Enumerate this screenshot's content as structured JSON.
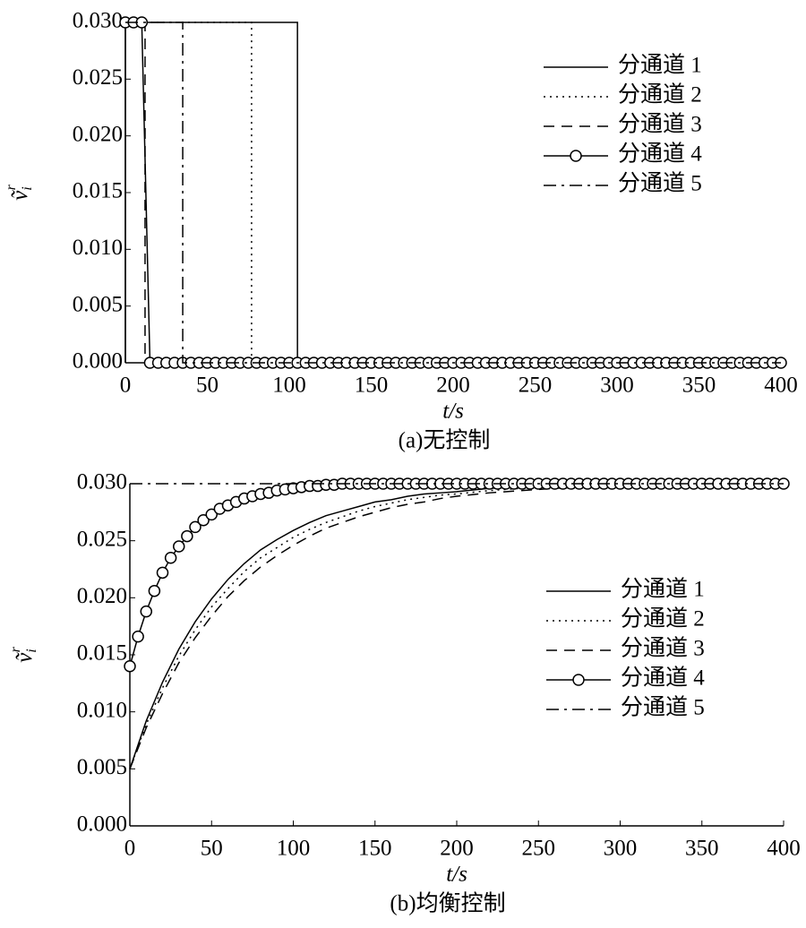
{
  "chart_data": [
    {
      "type": "line",
      "caption": "(a)无控制",
      "xlabel": "t/s",
      "ylabel": "ṽ",
      "ylabel_sub": "i",
      "ylabel_sup": "r",
      "xlim": [
        0,
        400
      ],
      "ylim": [
        0,
        0.03
      ],
      "xticks": [
        0,
        50,
        100,
        150,
        200,
        250,
        300,
        350,
        400
      ],
      "yticks": [
        {
          "value": 0,
          "label": "0.000"
        },
        0.005,
        {
          "value": 0.01,
          "label": "0.010"
        },
        0.015,
        {
          "value": 0.02,
          "label": "0.020"
        },
        0.025,
        {
          "value": 0.03,
          "label": "0.030"
        }
      ],
      "legend": "upper right",
      "series": [
        {
          "name": "分通道 1",
          "color": "#000000",
          "style": "solid",
          "x": [
            0,
            0,
            105,
            105,
            400
          ],
          "values": [
            0,
            0.03,
            0.03,
            0,
            0
          ]
        },
        {
          "name": "分通道 2",
          "color": "#000000",
          "style": "dotted",
          "x": [
            0,
            77,
            77,
            400
          ],
          "values": [
            0.03,
            0.03,
            0,
            0
          ]
        },
        {
          "name": "分通道 3",
          "color": "#000000",
          "style": "dashed",
          "x": [
            0,
            12,
            12,
            400
          ],
          "values": [
            0.03,
            0.03,
            0,
            0
          ]
        },
        {
          "name": "分通道 4",
          "color": "#000000",
          "style": "circle",
          "x": [
            0,
            5,
            10,
            15,
            20,
            25,
            30,
            35,
            40,
            45,
            50,
            55,
            60,
            65,
            70,
            75,
            80,
            85,
            90,
            95,
            100,
            105,
            110,
            115,
            120,
            125,
            130,
            135,
            140,
            145,
            150,
            155,
            160,
            165,
            170,
            175,
            180,
            185,
            190,
            195,
            200,
            205,
            210,
            215,
            220,
            225,
            230,
            235,
            240,
            245,
            250,
            255,
            260,
            265,
            270,
            275,
            280,
            285,
            290,
            295,
            300,
            305,
            310,
            315,
            320,
            325,
            330,
            335,
            340,
            345,
            350,
            355,
            360,
            365,
            370,
            375,
            380,
            385,
            390,
            395,
            400
          ],
          "values": [
            0.03,
            0.03,
            0.03,
            0,
            0,
            0,
            0,
            0,
            0,
            0,
            0,
            0,
            0,
            0,
            0,
            0,
            0,
            0,
            0,
            0,
            0,
            0,
            0,
            0,
            0,
            0,
            0,
            0,
            0,
            0,
            0,
            0,
            0,
            0,
            0,
            0,
            0,
            0,
            0,
            0,
            0,
            0,
            0,
            0,
            0,
            0,
            0,
            0,
            0,
            0,
            0,
            0,
            0,
            0,
            0,
            0,
            0,
            0,
            0,
            0,
            0,
            0,
            0,
            0,
            0,
            0,
            0,
            0,
            0,
            0,
            0,
            0,
            0,
            0,
            0,
            0,
            0,
            0,
            0,
            0,
            0
          ]
        },
        {
          "name": "分通道 5",
          "color": "#000000",
          "style": "dashdot",
          "x": [
            0,
            35,
            35,
            400
          ],
          "values": [
            0.03,
            0.03,
            0,
            0
          ]
        }
      ]
    },
    {
      "type": "line",
      "caption": "(b)均衡控制",
      "xlabel": "t/s",
      "ylabel": "ṽ",
      "ylabel_sub": "i",
      "ylabel_sup": "r",
      "xlim": [
        0,
        400
      ],
      "ylim": [
        0,
        0.03
      ],
      "xticks": [
        0,
        50,
        100,
        150,
        200,
        250,
        300,
        350,
        400
      ],
      "yticks": [
        {
          "value": 0,
          "label": "0.000"
        },
        0.005,
        {
          "value": 0.01,
          "label": "0.010"
        },
        0.015,
        {
          "value": 0.02,
          "label": "0.020"
        },
        0.025,
        {
          "value": 0.03,
          "label": "0.030"
        }
      ],
      "legend": "center right",
      "series": [
        {
          "name": "分通道 1",
          "color": "#000000",
          "style": "solid",
          "x": [
            0,
            10,
            20,
            30,
            40,
            50,
            60,
            70,
            80,
            90,
            100,
            110,
            120,
            130,
            140,
            150,
            160,
            170,
            180,
            190,
            200,
            220,
            240,
            260,
            280,
            300,
            320,
            340,
            360,
            380,
            400
          ],
          "values": [
            0.005,
            0.0092,
            0.0126,
            0.0155,
            0.0179,
            0.0199,
            0.0216,
            0.023,
            0.0242,
            0.0251,
            0.0259,
            0.0266,
            0.0272,
            0.0276,
            0.028,
            0.0284,
            0.0286,
            0.0289,
            0.0291,
            0.0292,
            0.0293,
            0.0296,
            0.0297,
            0.0298,
            0.0299,
            0.0299,
            0.03,
            0.03,
            0.03,
            0.03,
            0.03
          ]
        },
        {
          "name": "分通道 2",
          "color": "#000000",
          "style": "dotted",
          "x": [
            0,
            10,
            20,
            30,
            40,
            50,
            60,
            70,
            80,
            90,
            100,
            110,
            120,
            130,
            140,
            150,
            160,
            170,
            180,
            190,
            200,
            220,
            240,
            260,
            280,
            300,
            320,
            340,
            360,
            380,
            400
          ],
          "values": [
            0.005,
            0.0089,
            0.0121,
            0.0149,
            0.0172,
            0.0192,
            0.0208,
            0.0223,
            0.0235,
            0.0244,
            0.0253,
            0.026,
            0.0266,
            0.0271,
            0.0276,
            0.028,
            0.0283,
            0.0286,
            0.0288,
            0.029,
            0.0291,
            0.0294,
            0.0296,
            0.0297,
            0.0298,
            0.0299,
            0.03,
            0.03,
            0.03,
            0.03,
            0.03
          ]
        },
        {
          "name": "分通道 3",
          "color": "#000000",
          "style": "dashed",
          "x": [
            0,
            10,
            20,
            30,
            40,
            50,
            60,
            70,
            80,
            90,
            100,
            110,
            120,
            130,
            140,
            150,
            160,
            170,
            180,
            190,
            200,
            220,
            240,
            260,
            280,
            300,
            320,
            340,
            360,
            380,
            400
          ],
          "values": [
            0.005,
            0.0086,
            0.0116,
            0.0143,
            0.0165,
            0.0184,
            0.0201,
            0.0215,
            0.0227,
            0.0237,
            0.0246,
            0.0254,
            0.0261,
            0.0266,
            0.0271,
            0.0275,
            0.0279,
            0.0282,
            0.0284,
            0.0287,
            0.0289,
            0.0292,
            0.0294,
            0.0296,
            0.0297,
            0.0298,
            0.0299,
            0.0299,
            0.03,
            0.03,
            0.03
          ]
        },
        {
          "name": "分通道 4",
          "color": "#000000",
          "style": "circle",
          "x": [
            0,
            5,
            10,
            15,
            20,
            25,
            30,
            35,
            40,
            45,
            50,
            55,
            60,
            65,
            70,
            75,
            80,
            85,
            90,
            95,
            100,
            105,
            110,
            115,
            120,
            125,
            130,
            135,
            140,
            145,
            150,
            155,
            160,
            165,
            170,
            175,
            180,
            185,
            190,
            195,
            200,
            205,
            210,
            215,
            220,
            225,
            230,
            235,
            240,
            245,
            250,
            255,
            260,
            265,
            270,
            275,
            280,
            285,
            290,
            295,
            300,
            305,
            310,
            315,
            320,
            325,
            330,
            335,
            340,
            345,
            350,
            355,
            360,
            365,
            370,
            375,
            380,
            385,
            390,
            395,
            400
          ],
          "values": [
            0.014,
            0.0166,
            0.0188,
            0.0206,
            0.0222,
            0.0235,
            0.0245,
            0.0254,
            0.0262,
            0.0268,
            0.0273,
            0.0278,
            0.0281,
            0.0284,
            0.0287,
            0.0289,
            0.0291,
            0.0292,
            0.0294,
            0.0295,
            0.0296,
            0.0297,
            0.0298,
            0.0298,
            0.0299,
            0.0299,
            0.03,
            0.03,
            0.03,
            0.03,
            0.03,
            0.03,
            0.03,
            0.03,
            0.03,
            0.03,
            0.03,
            0.03,
            0.03,
            0.03,
            0.03,
            0.03,
            0.03,
            0.03,
            0.03,
            0.03,
            0.03,
            0.03,
            0.03,
            0.03,
            0.03,
            0.03,
            0.03,
            0.03,
            0.03,
            0.03,
            0.03,
            0.03,
            0.03,
            0.03,
            0.03,
            0.03,
            0.03,
            0.03,
            0.03,
            0.03,
            0.03,
            0.03,
            0.03,
            0.03,
            0.03,
            0.03,
            0.03,
            0.03,
            0.03,
            0.03,
            0.03,
            0.03,
            0.03,
            0.03,
            0.03
          ]
        },
        {
          "name": "分通道 5",
          "color": "#000000",
          "style": "dashdot",
          "x": [
            0,
            400
          ],
          "values": [
            0.03,
            0.03
          ]
        }
      ]
    }
  ]
}
